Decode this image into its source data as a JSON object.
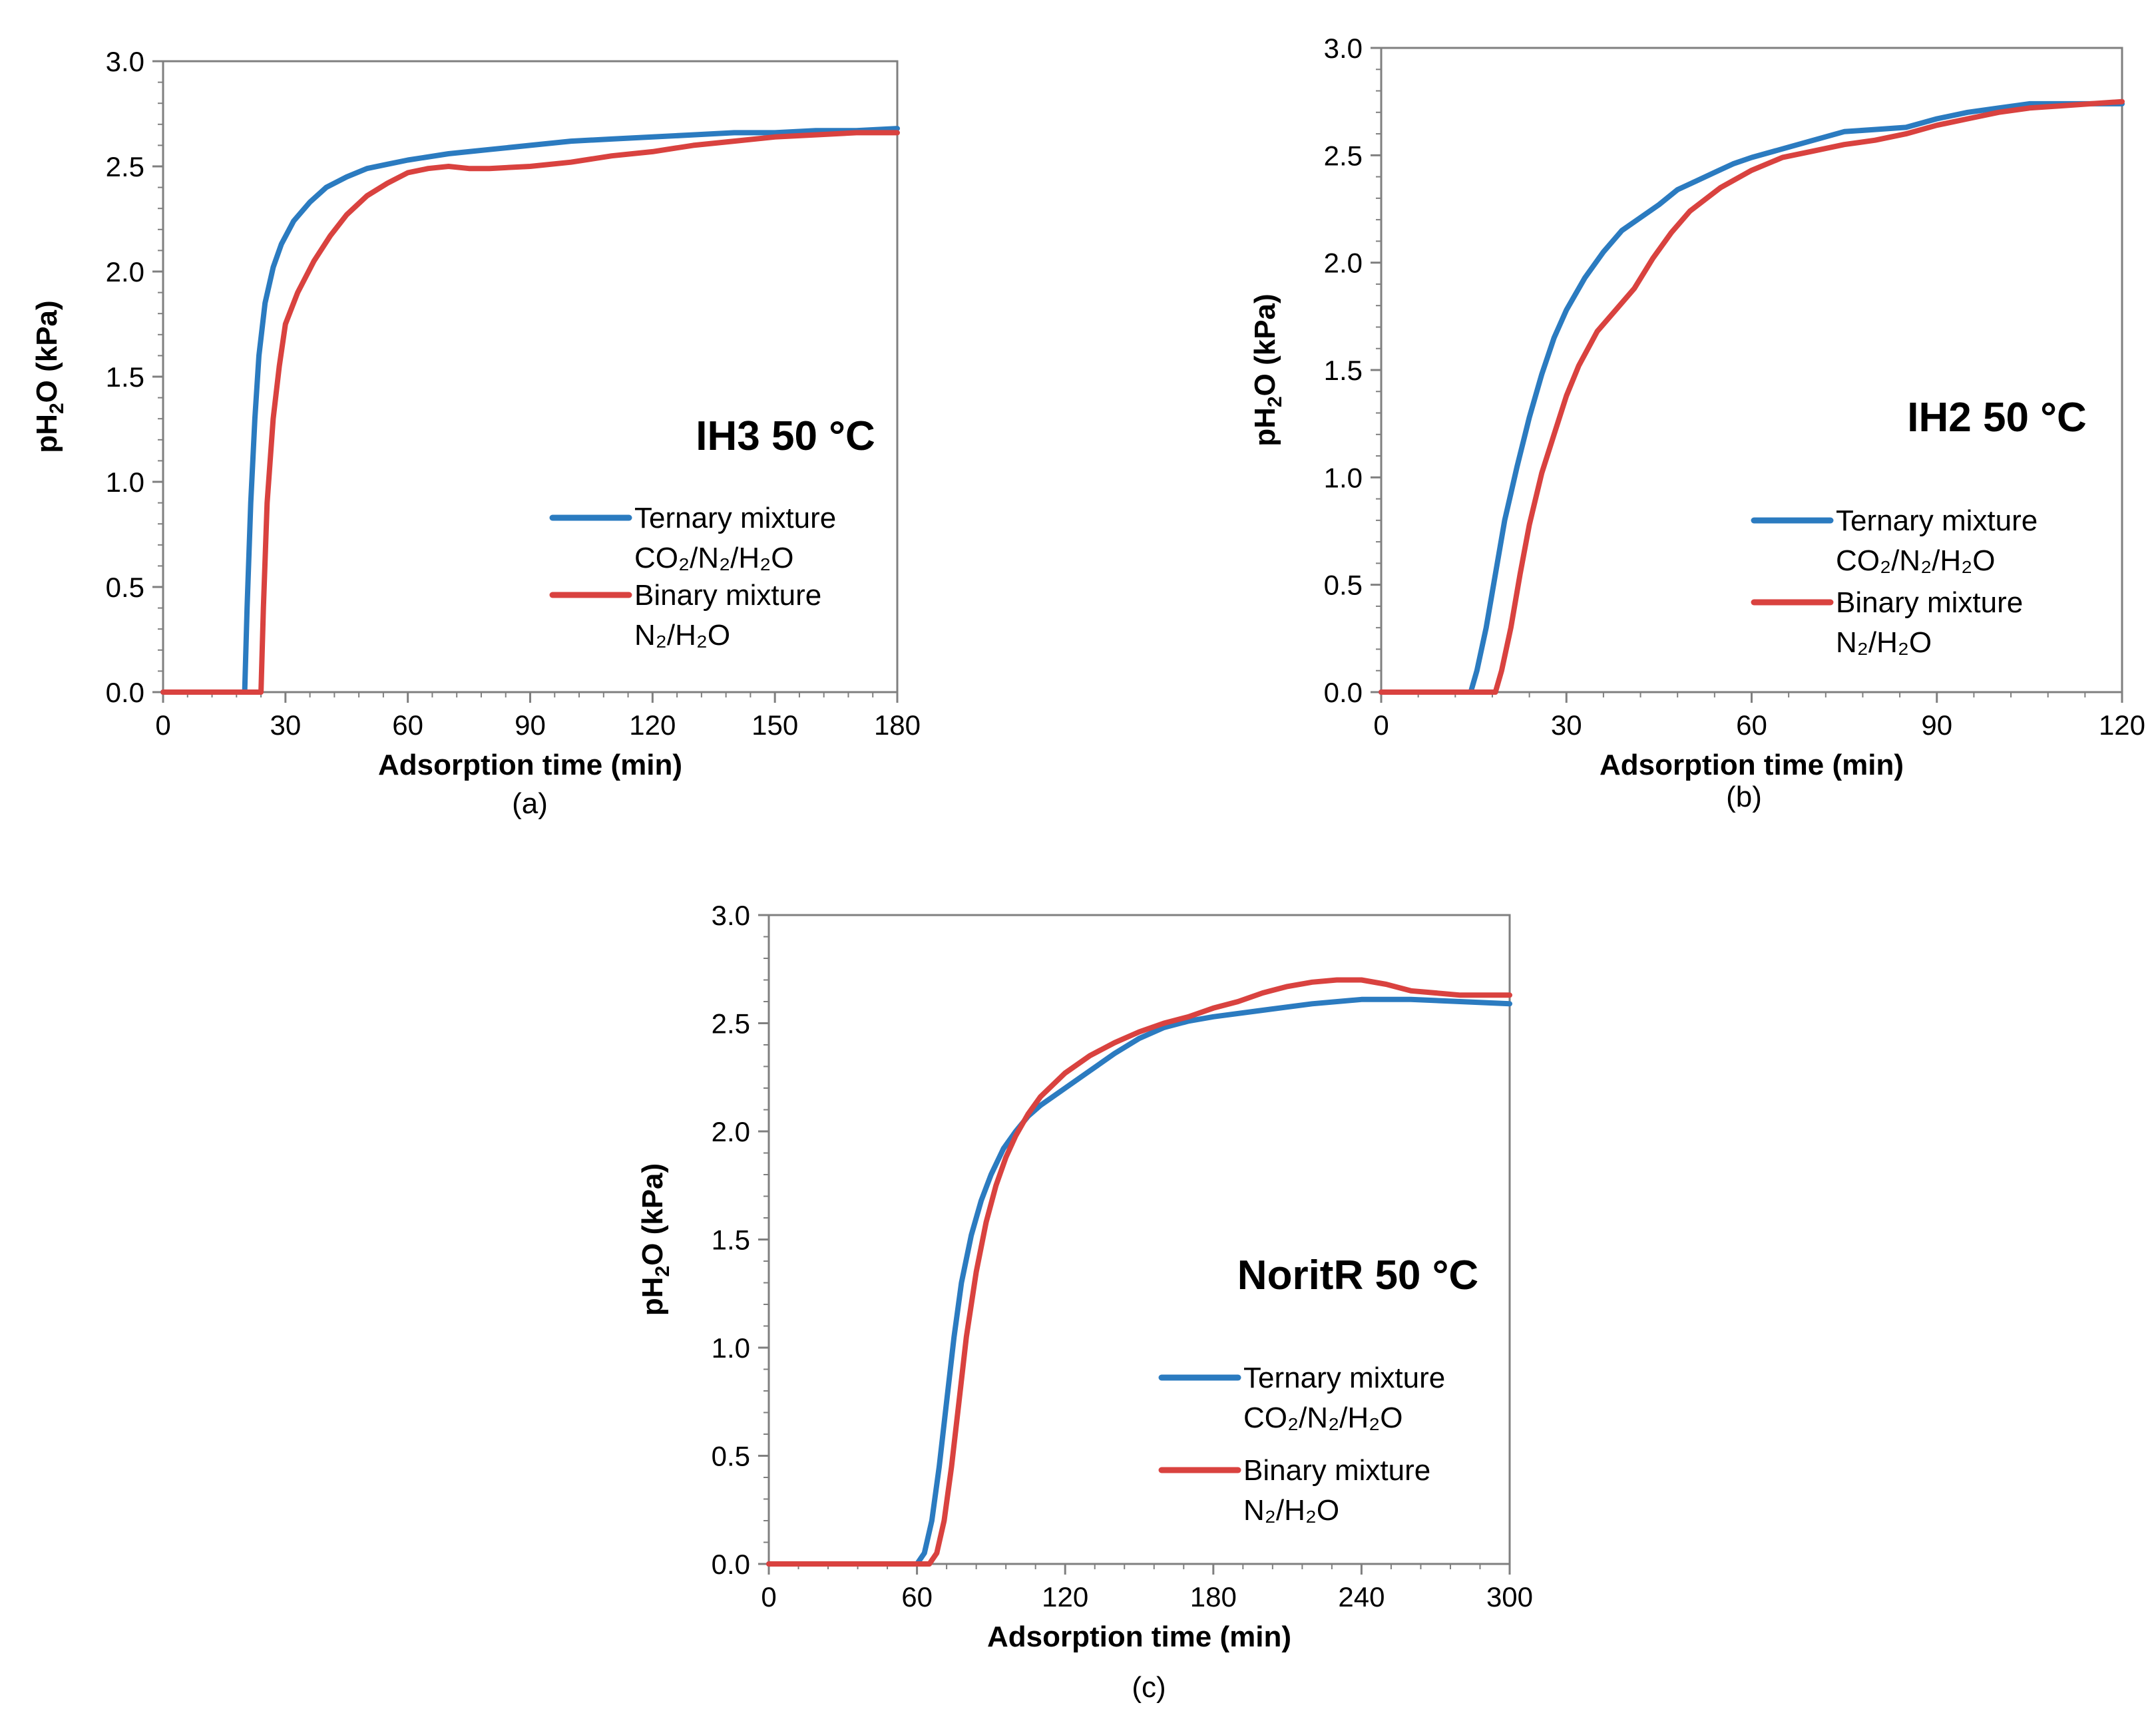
{
  "colors": {
    "ternary": "#2b7bc0",
    "binary": "#d9423f",
    "axis": "#7f7f7f"
  },
  "chart_data": [
    {
      "type": "line",
      "id": "a",
      "panel_label": "(a)",
      "title": "IH3 50 °C",
      "xlabel": "Adsorption time (min)",
      "ylabel": "pH2O (kPa)",
      "ylabel_parts": [
        "pH",
        "2",
        "O (kPa)"
      ],
      "xlim": [
        0,
        180
      ],
      "ylim": [
        0,
        3.0
      ],
      "x_ticks": [
        0,
        30,
        60,
        90,
        120,
        150,
        180
      ],
      "x_tick_labels": [
        "0",
        "30",
        "60",
        "90",
        "120",
        "150",
        "180"
      ],
      "y_ticks": [
        0,
        0.5,
        1.0,
        1.5,
        2.0,
        2.5,
        3.0
      ],
      "y_tick_labels": [
        "0.0",
        "0.5",
        "1.0",
        "1.5",
        "2.0",
        "2.5",
        "3.0"
      ],
      "legend": [
        {
          "line1": "Ternary mixture",
          "line2": "CO₂/N₂/H₂O"
        },
        {
          "line1": "Binary mixture",
          "line2": "N₂/H₂O"
        }
      ],
      "series": [
        {
          "name": "Ternary mixture CO₂/N₂/H₂O",
          "x": [
            0,
            20,
            20.6,
            21.5,
            22.5,
            23.5,
            25,
            27,
            29,
            32,
            36,
            40,
            45,
            50,
            55,
            60,
            70,
            80,
            90,
            100,
            110,
            120,
            130,
            140,
            150,
            160,
            170,
            180
          ],
          "y": [
            0,
            0,
            0.4,
            0.9,
            1.3,
            1.6,
            1.85,
            2.02,
            2.13,
            2.24,
            2.33,
            2.4,
            2.45,
            2.49,
            2.51,
            2.53,
            2.56,
            2.58,
            2.6,
            2.62,
            2.63,
            2.64,
            2.65,
            2.66,
            2.66,
            2.67,
            2.67,
            2.68
          ]
        },
        {
          "name": "Binary mixture N₂/H₂O",
          "x": [
            0,
            24,
            24.6,
            25.5,
            27,
            28.5,
            30,
            33,
            37,
            41,
            45,
            50,
            55,
            60,
            65,
            70,
            75,
            80,
            90,
            100,
            110,
            120,
            130,
            140,
            150,
            160,
            170,
            180
          ],
          "y": [
            0,
            0,
            0.4,
            0.9,
            1.3,
            1.55,
            1.75,
            1.9,
            2.05,
            2.17,
            2.27,
            2.36,
            2.42,
            2.47,
            2.49,
            2.5,
            2.49,
            2.49,
            2.5,
            2.52,
            2.55,
            2.57,
            2.6,
            2.62,
            2.64,
            2.65,
            2.66,
            2.66
          ]
        }
      ]
    },
    {
      "type": "line",
      "id": "b",
      "panel_label": "(b)",
      "title": "IH2 50 °C",
      "xlabel": "Adsorption time (min)",
      "ylabel": "pH2O (kPa)",
      "ylabel_parts": [
        "pH",
        "2",
        "O (kPa)"
      ],
      "xlim": [
        0,
        120
      ],
      "ylim": [
        0,
        3.0
      ],
      "x_ticks": [
        0,
        30,
        60,
        90,
        120
      ],
      "x_tick_labels": [
        "0",
        "30",
        "60",
        "90",
        "120"
      ],
      "y_ticks": [
        0,
        0.5,
        1.0,
        1.5,
        2.0,
        2.5,
        3.0
      ],
      "y_tick_labels": [
        "0.0",
        "0.5",
        "1.0",
        "1.5",
        "2.0",
        "2.5",
        "3.0"
      ],
      "legend": [
        {
          "line1": "Ternary mixture",
          "line2": "CO₂/N₂/H₂O"
        },
        {
          "line1": "Binary mixture",
          "line2": "N₂/H₂O"
        }
      ],
      "series": [
        {
          "name": "Ternary mixture CO₂/N₂/H₂O",
          "x": [
            0,
            14.5,
            15.5,
            17,
            18.5,
            20,
            22,
            24,
            26,
            28,
            30,
            33,
            36,
            39,
            42,
            45,
            48,
            51,
            54,
            57,
            60,
            65,
            70,
            75,
            80,
            85,
            90,
            95,
            100,
            105,
            110,
            115,
            120
          ],
          "y": [
            0,
            0,
            0.1,
            0.3,
            0.55,
            0.8,
            1.05,
            1.28,
            1.48,
            1.65,
            1.78,
            1.93,
            2.05,
            2.15,
            2.21,
            2.27,
            2.34,
            2.38,
            2.42,
            2.46,
            2.49,
            2.53,
            2.57,
            2.61,
            2.62,
            2.63,
            2.67,
            2.7,
            2.72,
            2.74,
            2.74,
            2.74,
            2.74
          ]
        },
        {
          "name": "Binary mixture N₂/H₂O",
          "x": [
            0,
            18.5,
            19.5,
            21,
            22.5,
            24,
            26,
            28,
            30,
            32,
            35,
            38,
            41,
            44,
            47,
            50,
            55,
            60,
            65,
            70,
            75,
            80,
            85,
            90,
            95,
            100,
            105,
            110,
            115,
            120
          ],
          "y": [
            0,
            0,
            0.1,
            0.3,
            0.55,
            0.78,
            1.02,
            1.2,
            1.38,
            1.52,
            1.68,
            1.78,
            1.88,
            2.02,
            2.14,
            2.24,
            2.35,
            2.43,
            2.49,
            2.52,
            2.55,
            2.57,
            2.6,
            2.64,
            2.67,
            2.7,
            2.72,
            2.73,
            2.74,
            2.75
          ]
        }
      ]
    },
    {
      "type": "line",
      "id": "c",
      "panel_label": "(c)",
      "title": "NoritR 50 °C",
      "xlabel": "Adsorption time (min)",
      "ylabel": "pH2O (kPa)",
      "ylabel_parts": [
        "pH",
        "2",
        "O (kPa)"
      ],
      "xlim": [
        0,
        300
      ],
      "ylim": [
        0,
        3.0
      ],
      "x_ticks": [
        0,
        60,
        120,
        180,
        240,
        300
      ],
      "x_tick_labels": [
        "0",
        "60",
        "120",
        "180",
        "240",
        "300"
      ],
      "y_ticks": [
        0,
        0.5,
        1.0,
        1.5,
        2.0,
        2.5,
        3.0
      ],
      "y_tick_labels": [
        "0.0",
        "0.5",
        "1.0",
        "1.5",
        "2.0",
        "2.5",
        "3.0"
      ],
      "legend": [
        {
          "line1": "Ternary mixture",
          "line2": "CO₂/N₂/H₂O"
        },
        {
          "line1": "Binary mixture",
          "line2": "N₂/H₂O"
        }
      ],
      "series": [
        {
          "name": "Ternary mixture CO₂/N₂/H₂O",
          "x": [
            0,
            60,
            63,
            66,
            69,
            72,
            75,
            78,
            82,
            86,
            90,
            95,
            100,
            105,
            110,
            120,
            130,
            140,
            150,
            160,
            170,
            180,
            200,
            220,
            240,
            260,
            280,
            300
          ],
          "y": [
            0,
            0,
            0.05,
            0.2,
            0.45,
            0.75,
            1.05,
            1.3,
            1.52,
            1.68,
            1.8,
            1.92,
            2.0,
            2.07,
            2.12,
            2.2,
            2.28,
            2.36,
            2.43,
            2.48,
            2.51,
            2.53,
            2.56,
            2.59,
            2.61,
            2.61,
            2.6,
            2.59
          ]
        },
        {
          "name": "Binary mixture N₂/H₂O",
          "x": [
            0,
            65,
            68,
            71,
            74,
            77,
            80,
            84,
            88,
            92,
            96,
            100,
            105,
            110,
            120,
            130,
            140,
            150,
            160,
            170,
            180,
            190,
            200,
            210,
            220,
            230,
            240,
            250,
            260,
            270,
            280,
            290,
            300
          ],
          "y": [
            0,
            0,
            0.05,
            0.2,
            0.45,
            0.75,
            1.05,
            1.35,
            1.58,
            1.75,
            1.88,
            1.98,
            2.08,
            2.16,
            2.27,
            2.35,
            2.41,
            2.46,
            2.5,
            2.53,
            2.57,
            2.6,
            2.64,
            2.67,
            2.69,
            2.7,
            2.7,
            2.68,
            2.65,
            2.64,
            2.63,
            2.63,
            2.63
          ]
        }
      ]
    }
  ]
}
